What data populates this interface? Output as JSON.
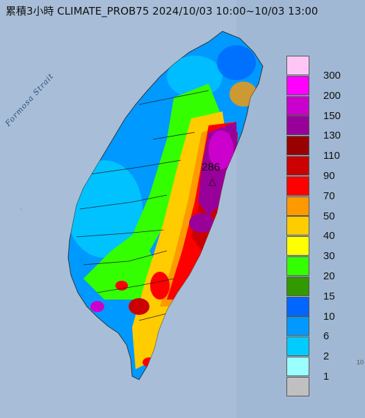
{
  "title": "累積3小時 CLIMATE_PROB75 2024/10/03 10:00~10/03 13:00",
  "strait_label": "Formosa Strait",
  "max_value": "286",
  "max_marker": "△",
  "edge_label": "10",
  "legend": [
    {
      "label": "300",
      "color": "#ffc6f5"
    },
    {
      "label": "200",
      "color": "#ff00ff"
    },
    {
      "label": "150",
      "color": "#cc00cc"
    },
    {
      "label": "130",
      "color": "#990099"
    },
    {
      "label": "110",
      "color": "#990000"
    },
    {
      "label": "90",
      "color": "#cc0000"
    },
    {
      "label": "70",
      "color": "#ff0000"
    },
    {
      "label": "50",
      "color": "#ff9900"
    },
    {
      "label": "40",
      "color": "#ffcc00"
    },
    {
      "label": "30",
      "color": "#ffff00"
    },
    {
      "label": "20",
      "color": "#33ff00"
    },
    {
      "label": "15",
      "color": "#339900"
    },
    {
      "label": "10",
      "color": "#0066ff"
    },
    {
      "label": "6",
      "color": "#0099ff"
    },
    {
      "label": "2",
      "color": "#00ccff"
    },
    {
      "label": "1",
      "color": "#99ffff"
    },
    {
      "label": "",
      "color": "#c0c0c0"
    }
  ]
}
